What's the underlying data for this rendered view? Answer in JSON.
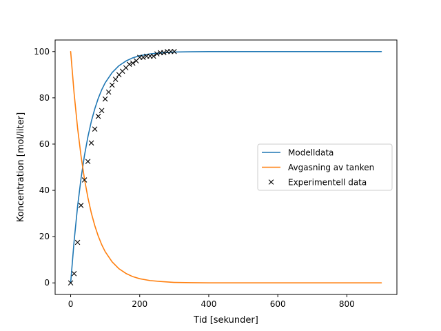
{
  "chart_data": {
    "type": "line",
    "title": "",
    "xlabel": "Tid [sekunder]",
    "ylabel": "Koncentration [mol/liter]",
    "xlim": [
      -45,
      945
    ],
    "ylim": [
      -5,
      105
    ],
    "xticks": [
      0,
      200,
      400,
      600,
      800
    ],
    "yticks": [
      0,
      20,
      40,
      60,
      80,
      100
    ],
    "grid": false,
    "legend_position": "center-right",
    "series": [
      {
        "name": "Modelldata",
        "kind": "line",
        "color": "#1f77b4",
        "x": [
          0,
          10,
          20,
          30,
          40,
          50,
          60,
          70,
          80,
          90,
          100,
          120,
          140,
          160,
          180,
          200,
          230,
          260,
          300,
          350,
          400,
          500,
          600,
          700,
          800,
          900
        ],
        "y": [
          0,
          18.1,
          33.0,
          45.1,
          55.1,
          63.2,
          69.9,
          75.3,
          79.8,
          83.5,
          86.5,
          90.9,
          93.9,
          95.9,
          97.3,
          98.2,
          99.0,
          99.4,
          99.8,
          99.9,
          100,
          100,
          100,
          100,
          100,
          100
        ]
      },
      {
        "name": "Avgasning av tanken",
        "kind": "line",
        "color": "#ff7f0e",
        "x": [
          0,
          10,
          20,
          30,
          40,
          50,
          60,
          70,
          80,
          90,
          100,
          120,
          140,
          160,
          180,
          200,
          230,
          260,
          300,
          350,
          400,
          500,
          600,
          700,
          800,
          900
        ],
        "y": [
          100,
          81.9,
          67.0,
          54.9,
          44.9,
          36.8,
          30.1,
          24.7,
          20.2,
          16.5,
          13.5,
          9.1,
          6.1,
          4.1,
          2.7,
          1.8,
          1.0,
          0.6,
          0.2,
          0.1,
          0,
          0,
          0,
          0,
          0,
          0
        ]
      },
      {
        "name": "Experimentell data",
        "kind": "scatter",
        "marker": "x",
        "color": "#000000",
        "x": [
          0,
          10,
          20,
          30,
          40,
          50,
          60,
          70,
          80,
          90,
          100,
          110,
          120,
          130,
          140,
          150,
          160,
          170,
          180,
          190,
          200,
          210,
          220,
          230,
          240,
          250,
          260,
          270,
          280,
          290,
          300
        ],
        "y": [
          0,
          4,
          17.5,
          33.5,
          44.5,
          52.5,
          60.5,
          66.5,
          72,
          74.5,
          79.5,
          82.5,
          85.5,
          88,
          90,
          91.5,
          93,
          94.5,
          95,
          96,
          97.5,
          97.5,
          98,
          98,
          98,
          99,
          99.5,
          99.5,
          100,
          100,
          100
        ]
      }
    ]
  }
}
